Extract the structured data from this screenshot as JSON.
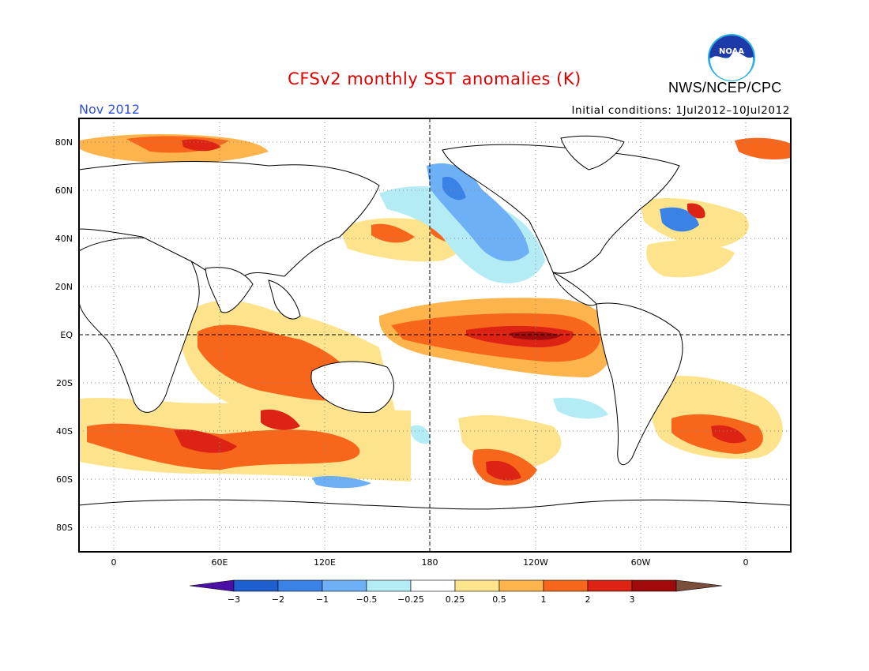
{
  "header": {
    "title": "CFSv2 monthly SST anomalies (K)",
    "month": "Nov 2012",
    "initial_conditions": "Initial conditions: 1Jul2012–10Jul2012",
    "agency": "NWS/NCEP/CPC",
    "logo_text": "NOAA"
  },
  "map": {
    "lat_labels": [
      "80N",
      "60N",
      "40N",
      "20N",
      "EQ",
      "20S",
      "40S",
      "60S",
      "80S"
    ],
    "lon_labels": [
      "0",
      "60E",
      "120E",
      "180",
      "120W",
      "60W",
      "0"
    ],
    "reference_lines": [
      "EQ",
      "180"
    ]
  },
  "colorbar": {
    "labels": [
      "−3",
      "−2",
      "−1",
      "−0.5",
      "−0.25",
      "0.25",
      "0.5",
      "1",
      "2",
      "3"
    ],
    "colors": [
      "#4b0fa8",
      "#1e5fd0",
      "#3a82e6",
      "#6eb0f5",
      "#b3ecf5",
      "#ffffff",
      "#fde48c",
      "#fdb44d",
      "#f8661c",
      "#dc2314",
      "#a00a0a",
      "#7a4e3a"
    ]
  }
}
